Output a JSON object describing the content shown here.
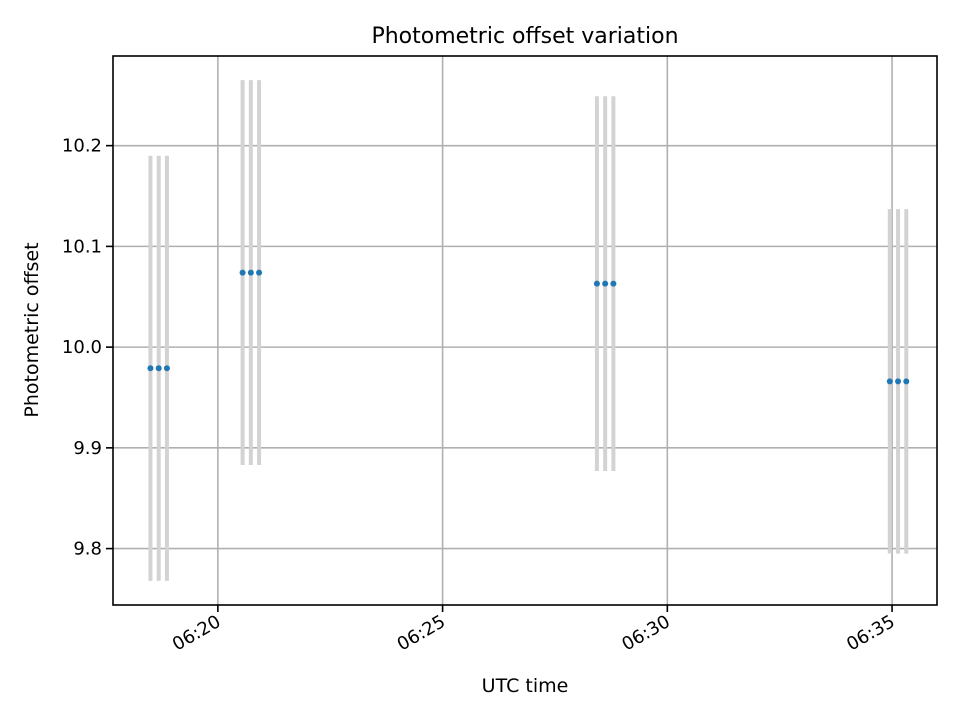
{
  "chart_data": {
    "type": "scatter",
    "title": "Photometric offset variation",
    "xlabel": "UTC time",
    "ylabel": "Photometric offset",
    "x_axis": {
      "type": "time",
      "range": [
        "06:17:40",
        "06:36:00"
      ],
      "ticks": [
        "06:20",
        "06:25",
        "06:30",
        "06:35"
      ],
      "tick_label_rotation": 30
    },
    "y_axis": {
      "range": [
        9.744,
        10.289
      ],
      "ticks": [
        "9.8",
        "9.9",
        "10.0",
        "10.1",
        "10.2"
      ]
    },
    "grid": true,
    "legend": "none",
    "colors": {
      "marker": "#1f77b4",
      "errorbar": "#d3d3d3",
      "grid": "#b0b0b0"
    },
    "series": [
      {
        "points": [
          {
            "x": "06:18:30",
            "y": 9.979,
            "yerr": 0.211
          },
          {
            "x": "06:18:41",
            "y": 9.979,
            "yerr": 0.211
          },
          {
            "x": "06:18:52",
            "y": 9.979,
            "yerr": 0.211
          },
          {
            "x": "06:20:33",
            "y": 10.074,
            "yerr": 0.191
          },
          {
            "x": "06:20:44",
            "y": 10.074,
            "yerr": 0.191
          },
          {
            "x": "06:20:55",
            "y": 10.074,
            "yerr": 0.191
          },
          {
            "x": "06:28:26",
            "y": 10.063,
            "yerr": 0.186
          },
          {
            "x": "06:28:37",
            "y": 10.063,
            "yerr": 0.186
          },
          {
            "x": "06:28:48",
            "y": 10.063,
            "yerr": 0.186
          },
          {
            "x": "06:34:57",
            "y": 9.966,
            "yerr": 0.171
          },
          {
            "x": "06:35:08",
            "y": 9.966,
            "yerr": 0.171
          },
          {
            "x": "06:35:19",
            "y": 9.966,
            "yerr": 0.171
          }
        ]
      }
    ]
  }
}
